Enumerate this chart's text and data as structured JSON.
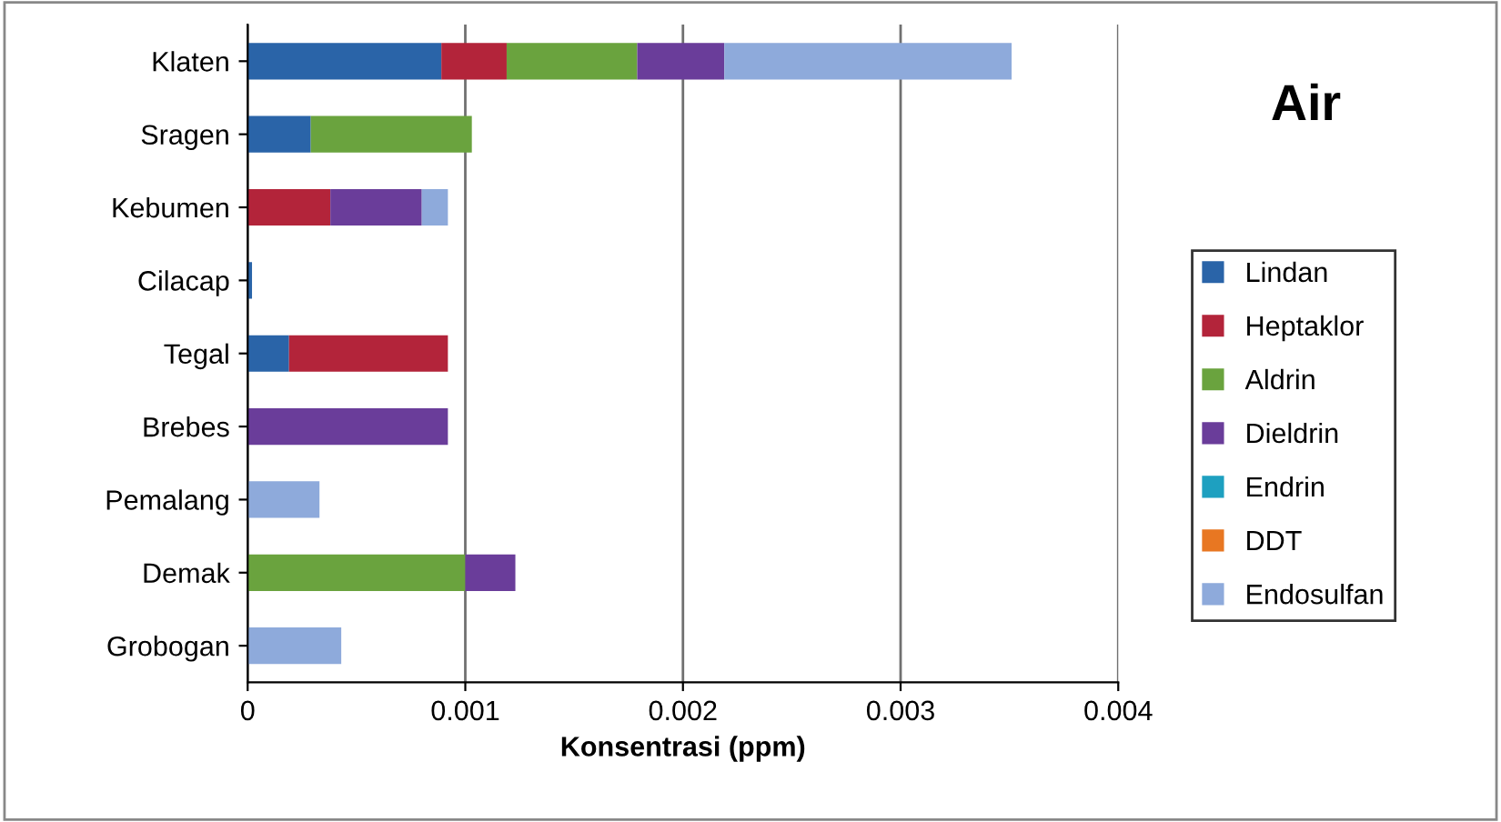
{
  "chart_data": {
    "type": "bar",
    "orientation": "horizontal",
    "stacked": true,
    "title": "Air",
    "xlabel": "Konsentrasi (ppm)",
    "categories": [
      "Klaten",
      "Sragen",
      "Kebumen",
      "Cilacap",
      "Tegal",
      "Brebes",
      "Pemalang",
      "Demak",
      "Grobogan"
    ],
    "series": [
      {
        "name": "Lindan",
        "color": "#2a64a8",
        "values": [
          0.00089,
          0.00029,
          null,
          2e-05,
          0.00019,
          null,
          null,
          null,
          null
        ]
      },
      {
        "name": "Heptaklor",
        "color": "#b3243a",
        "values": [
          0.0003,
          null,
          0.00038,
          null,
          0.00073,
          null,
          null,
          null,
          null
        ]
      },
      {
        "name": "Aldrin",
        "color": "#6aa33e",
        "values": [
          0.0006,
          0.00074,
          null,
          null,
          null,
          null,
          null,
          0.001,
          null
        ]
      },
      {
        "name": "Dieldrin",
        "color": "#6a3d9a",
        "values": [
          0.0004,
          null,
          0.00042,
          null,
          null,
          0.00092,
          null,
          0.00023,
          null
        ]
      },
      {
        "name": "Endrin",
        "color": "#1ea0c0",
        "values": [
          null,
          null,
          null,
          null,
          null,
          null,
          null,
          null,
          null
        ]
      },
      {
        "name": "DDT",
        "color": "#e87722",
        "values": [
          null,
          null,
          null,
          null,
          null,
          null,
          null,
          null,
          null
        ]
      },
      {
        "name": "Endosulfan",
        "color": "#8eaadb",
        "values": [
          0.00132,
          null,
          0.00012,
          null,
          null,
          null,
          0.00033,
          null,
          0.00043
        ]
      }
    ],
    "xlim": [
      0,
      0.004
    ],
    "xticks": [
      0,
      0.001,
      0.002,
      0.003,
      0.004
    ],
    "grid": "x",
    "legend": "right"
  }
}
